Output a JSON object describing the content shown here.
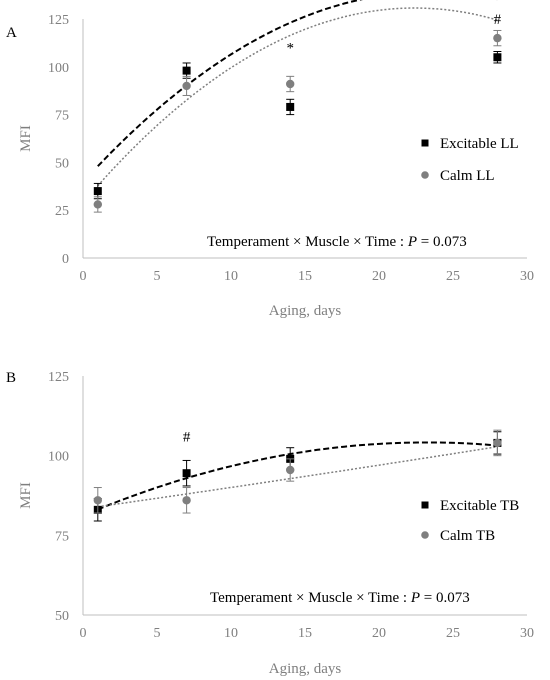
{
  "chart_data": [
    {
      "type": "scatter",
      "panel": "A",
      "xlabel": "Aging, days",
      "ylabel": "MFI",
      "xlim": [
        0,
        30
      ],
      "ylim": [
        0,
        125
      ],
      "xticks": [
        0,
        5,
        10,
        15,
        20,
        25,
        30
      ],
      "yticks": [
        0,
        25,
        50,
        75,
        100,
        125
      ],
      "series": [
        {
          "name": "Excitable LL",
          "color": "#000000",
          "marker": "square",
          "x": [
            1,
            7,
            14,
            28
          ],
          "y": [
            35,
            98,
            79,
            105
          ],
          "err": [
            4,
            4,
            4,
            3
          ],
          "trend": [
            39.7,
            8.49,
            -0.1812
          ]
        },
        {
          "name": "Calm LL",
          "color": "#7f7f7f",
          "marker": "circle",
          "x": [
            1,
            7,
            14,
            28
          ],
          "y": [
            28,
            90,
            91,
            115
          ],
          "err": [
            4,
            5,
            4,
            4
          ],
          "trend": [
            28.96,
            9.08,
            -0.2025
          ]
        }
      ],
      "annotation": {
        "prefix": "Temperament × Muscle × Time : ",
        "var": "P",
        "suffix": " = 0.073"
      },
      "markers": [
        {
          "text": "*",
          "x": 14,
          "y": 110
        },
        {
          "text": "#",
          "x": 28,
          "y": 125
        }
      ],
      "legend": "right"
    },
    {
      "type": "scatter",
      "panel": "B",
      "xlabel": "Aging, days",
      "ylabel": "MFI",
      "xlim": [
        0,
        30
      ],
      "ylim": [
        50,
        125
      ],
      "xticks": [
        0,
        5,
        10,
        15,
        20,
        25,
        30
      ],
      "yticks": [
        50,
        75,
        100,
        125
      ],
      "series": [
        {
          "name": "Excitable TB",
          "color": "#000000",
          "marker": "square",
          "x": [
            1,
            7,
            14,
            28
          ],
          "y": [
            83,
            94.5,
            99,
            104
          ],
          "err": [
            3.5,
            4,
            3.5,
            3.5
          ],
          "trend": [
            81.2,
            1.975,
            -0.0425
          ]
        },
        {
          "name": "Calm TB",
          "color": "#7f7f7f",
          "marker": "circle",
          "x": [
            1,
            7,
            14,
            28
          ],
          "y": [
            86,
            86,
            95.5,
            104
          ],
          "err": [
            4,
            4,
            3.5,
            4
          ],
          "trend": [
            83.3,
            0.66,
            0.0013
          ]
        }
      ],
      "annotation": {
        "prefix": "Temperament × Muscle × Time : ",
        "var": "P",
        "suffix": " = 0.073"
      },
      "markers": [
        {
          "text": "#",
          "x": 7,
          "y": 106
        }
      ],
      "legend": "right"
    }
  ]
}
